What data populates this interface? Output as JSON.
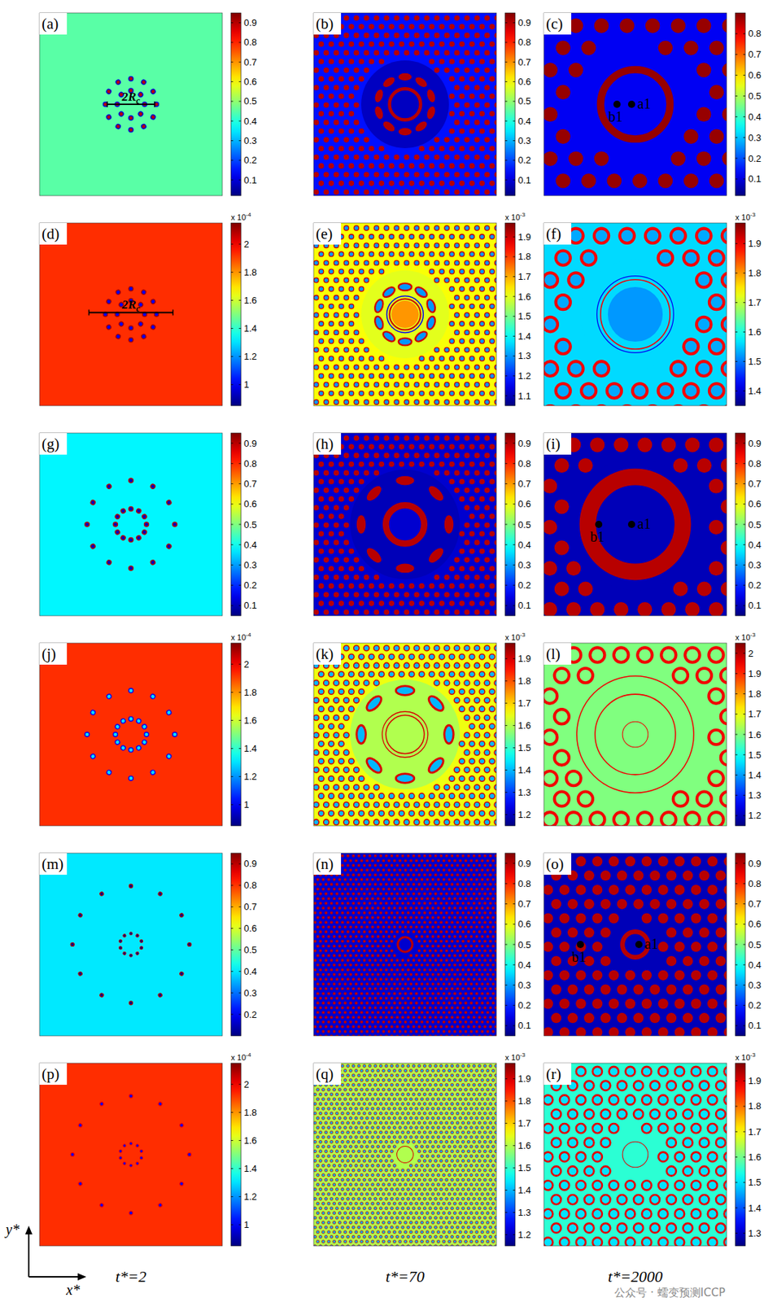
{
  "chart_data": [
    {
      "type": "heatmap",
      "label": "(a)",
      "colorbar": {
        "range": [
          0.02,
          0.95
        ],
        "ticks": [
          0.1,
          0.2,
          0.3,
          0.4,
          0.5,
          0.6,
          0.7,
          0.8,
          0.9
        ]
      },
      "field": {
        "background": 0.45,
        "disks": [],
        "rings": [],
        "particle_rings": [
          {
            "r": 0.075,
            "n": 8,
            "size": 0.012,
            "aspect": 1,
            "value": 0.9,
            "outline": 0.1
          },
          {
            "r": 0.14,
            "n": 12,
            "size": 0.012,
            "aspect": 1,
            "value": 0.9,
            "outline": 0.1
          }
        ],
        "points": [],
        "scale_line": {
          "label": "2R",
          "sub": "c",
          "x0": 0.37,
          "x1": 0.63,
          "y": 0.5
        }
      }
    },
    {
      "type": "heatmap",
      "label": "(b)",
      "colorbar": {
        "range": [
          0.02,
          0.95
        ],
        "ticks": [
          0.1,
          0.2,
          0.3,
          0.4,
          0.5,
          0.6,
          0.7,
          0.8,
          0.9
        ]
      },
      "field": {
        "background": 0.15,
        "disks": [
          {
            "r": 0.24,
            "value": 0.08
          }
        ],
        "lattice": {
          "spacing": 0.055,
          "size": 0.015,
          "value": 0.9,
          "exclude": 0.24
        },
        "rings": [
          {
            "r": 0.085,
            "width": 0.018,
            "value": 0.9
          }
        ],
        "particle_rings": [
          {
            "r": 0.15,
            "n": 10,
            "size": 0.02,
            "aspect": 1.8,
            "value": 0.9
          }
        ],
        "points": []
      }
    },
    {
      "type": "heatmap",
      "label": "(c)",
      "colorbar": {
        "range": [
          0.02,
          0.9
        ],
        "ticks": [
          0.1,
          0.2,
          0.3,
          0.4,
          0.5,
          0.6,
          0.7,
          0.8
        ]
      },
      "field": {
        "background": 0.12,
        "disks": [
          {
            "r": 0.3,
            "value": 0.12
          }
        ],
        "lattice": {
          "spacing": 0.14,
          "size": 0.04,
          "value": 0.88,
          "exclude": 0.3
        },
        "rings": [
          {
            "r": 0.19,
            "width": 0.04,
            "value": 0.88
          }
        ],
        "particle_rings": [],
        "points": [
          {
            "label": "a1",
            "x": 0.48,
            "y": 0.5,
            "side": "right"
          },
          {
            "label": "b1",
            "x": 0.4,
            "y": 0.5,
            "side": "below"
          }
        ]
      }
    },
    {
      "type": "heatmap",
      "label": "(d)",
      "colorbar": {
        "range": [
          0.85,
          2.15
        ],
        "ticks": [
          1,
          1.2,
          1.4,
          1.6,
          1.8,
          2
        ],
        "multiplier": {
          "base": "x 10",
          "exponent": "-4"
        }
      },
      "field": {
        "background": 1.93,
        "disks": [],
        "rings": [],
        "particle_rings": [
          {
            "r": 0.075,
            "n": 8,
            "size": 0.012,
            "aspect": 1,
            "value": 1.0,
            "outline": 2.1
          },
          {
            "r": 0.14,
            "n": 12,
            "size": 0.012,
            "aspect": 1,
            "value": 1.0,
            "outline": 2.1
          }
        ],
        "points": [],
        "scale_line": {
          "label": "2R",
          "sub": "c",
          "x0": 0.27,
          "x1": 0.73,
          "y": 0.49
        }
      }
    },
    {
      "type": "heatmap",
      "label": "(e)",
      "colorbar": {
        "range": [
          1.05,
          1.97
        ],
        "ticks": [
          1.1,
          1.2,
          1.3,
          1.4,
          1.5,
          1.6,
          1.7,
          1.8,
          1.9
        ],
        "multiplier": {
          "base": "x 10",
          "exponent": "-3"
        }
      },
      "field": {
        "background": 1.62,
        "disks": [
          {
            "r": 0.24,
            "value": 1.6
          },
          {
            "r": 0.075,
            "value": 1.72
          }
        ],
        "lattice": {
          "spacing": 0.055,
          "size": 0.013,
          "value": 1.3,
          "outline": 1.9,
          "exclude": 0.24
        },
        "rings": [
          {
            "r": 0.085,
            "width": 0.008,
            "value": 1.9
          },
          {
            "r": 0.1,
            "width": 0.006,
            "value": 1.15
          }
        ],
        "particle_rings": [
          {
            "r": 0.15,
            "n": 10,
            "size": 0.02,
            "aspect": 1.8,
            "value": 1.3,
            "outline": 1.9
          }
        ],
        "points": []
      }
    },
    {
      "type": "heatmap",
      "label": "(f)",
      "colorbar": {
        "range": [
          1.35,
          1.97
        ],
        "ticks": [
          1.4,
          1.5,
          1.6,
          1.7,
          1.8,
          1.9
        ],
        "multiplier": {
          "base": "x 10",
          "exponent": "-3"
        }
      },
      "field": {
        "background": 1.56,
        "disks": [
          {
            "r": 0.3,
            "value": 1.56
          },
          {
            "r": 0.15,
            "value": 1.52
          }
        ],
        "lattice": {
          "spacing": 0.14,
          "size": 0.04,
          "value": 1.53,
          "outline": 1.9,
          "exclude": 0.3
        },
        "rings": [
          {
            "r": 0.19,
            "width": 0.006,
            "value": 1.9
          },
          {
            "r": 0.21,
            "width": 0.005,
            "value": 1.42
          }
        ],
        "particle_rings": [],
        "points": []
      }
    },
    {
      "type": "heatmap",
      "label": "(g)",
      "colorbar": {
        "range": [
          0.05,
          0.95
        ],
        "ticks": [
          0.1,
          0.2,
          0.3,
          0.4,
          0.5,
          0.6,
          0.7,
          0.8,
          0.9
        ]
      },
      "field": {
        "background": 0.38,
        "disks": [],
        "rings": [],
        "particle_rings": [
          {
            "r": 0.085,
            "n": 12,
            "size": 0.012,
            "aspect": 1,
            "value": 0.1,
            "outline": 0.9
          },
          {
            "r": 0.24,
            "n": 12,
            "size": 0.012,
            "aspect": 1,
            "value": 0.1,
            "outline": 0.9
          }
        ],
        "points": []
      }
    },
    {
      "type": "heatmap",
      "label": "(h)",
      "colorbar": {
        "range": [
          0.05,
          0.95
        ],
        "ticks": [
          0.1,
          0.2,
          0.3,
          0.4,
          0.5,
          0.6,
          0.7,
          0.8,
          0.9
        ]
      },
      "field": {
        "background": 0.12,
        "disks": [
          {
            "r": 0.3,
            "value": 0.1
          },
          {
            "r": 0.09,
            "value": 0.12
          }
        ],
        "lattice": {
          "spacing": 0.055,
          "size": 0.015,
          "value": 0.9,
          "exclude": 0.3
        },
        "rings": [
          {
            "r": 0.105,
            "width": 0.035,
            "value": 0.9
          }
        ],
        "particle_rings": [
          {
            "r": 0.24,
            "n": 8,
            "size": 0.025,
            "aspect": 2,
            "value": 0.9
          }
        ],
        "points": []
      }
    },
    {
      "type": "heatmap",
      "label": "(i)",
      "colorbar": {
        "range": [
          0.05,
          0.95
        ],
        "ticks": [
          0.1,
          0.2,
          0.3,
          0.4,
          0.5,
          0.6,
          0.7,
          0.8,
          0.9
        ]
      },
      "field": {
        "background": 0.1,
        "disks": [
          {
            "r": 0.36,
            "value": 0.1
          }
        ],
        "lattice": {
          "spacing": 0.13,
          "size": 0.04,
          "value": 0.9,
          "exclude": 0.36
        },
        "rings": [
          {
            "r": 0.26,
            "width": 0.09,
            "value": 0.9
          }
        ],
        "particle_rings": [],
        "points": [
          {
            "label": "a1",
            "x": 0.48,
            "y": 0.5,
            "side": "right"
          },
          {
            "label": "b1",
            "x": 0.3,
            "y": 0.5,
            "side": "below"
          }
        ]
      }
    },
    {
      "type": "heatmap",
      "label": "(j)",
      "colorbar": {
        "range": [
          0.85,
          2.15
        ],
        "ticks": [
          1,
          1.2,
          1.4,
          1.6,
          1.8,
          2
        ],
        "multiplier": {
          "base": "x 10",
          "exponent": "-4"
        }
      },
      "field": {
        "background": 1.93,
        "disks": [],
        "rings": [],
        "particle_rings": [
          {
            "r": 0.085,
            "n": 12,
            "size": 0.012,
            "aspect": 1,
            "value": 1.3,
            "outline": 1.0
          },
          {
            "r": 0.24,
            "n": 12,
            "size": 0.012,
            "aspect": 1,
            "value": 1.3,
            "outline": 1.0
          }
        ],
        "points": []
      }
    },
    {
      "type": "heatmap",
      "label": "(k)",
      "colorbar": {
        "range": [
          1.15,
          1.97
        ],
        "ticks": [
          1.2,
          1.3,
          1.4,
          1.5,
          1.6,
          1.7,
          1.8,
          1.9
        ],
        "multiplier": {
          "base": "x 10",
          "exponent": "-3"
        }
      },
      "field": {
        "background": 1.65,
        "disks": [
          {
            "r": 0.3,
            "value": 1.6
          }
        ],
        "lattice": {
          "spacing": 0.055,
          "size": 0.015,
          "value": 1.4,
          "outline": 1.9,
          "exclude": 0.3
        },
        "rings": [
          {
            "r": 0.105,
            "width": 0.006,
            "value": 1.9
          },
          {
            "r": 0.125,
            "width": 0.005,
            "value": 1.9
          }
        ],
        "particle_rings": [
          {
            "r": 0.24,
            "n": 8,
            "size": 0.025,
            "aspect": 2,
            "value": 1.4,
            "outline": 1.9
          }
        ],
        "points": []
      }
    },
    {
      "type": "heatmap",
      "label": "(l)",
      "colorbar": {
        "range": [
          1.15,
          2.05
        ],
        "ticks": [
          1.2,
          1.3,
          1.4,
          1.5,
          1.6,
          1.7,
          1.8,
          1.9,
          2
        ],
        "multiplier": {
          "base": "x 10",
          "exponent": "-3"
        }
      },
      "field": {
        "background": 1.6,
        "disks": [],
        "lattice": {
          "spacing": 0.13,
          "size": 0.04,
          "value": 1.6,
          "outline": 1.95,
          "exclude": 0.36
        },
        "rings": [
          {
            "r": 0.22,
            "width": 0.006,
            "value": 1.95
          },
          {
            "r": 0.32,
            "width": 0.006,
            "value": 1.95
          },
          {
            "r": 0.07,
            "width": 0.004,
            "value": 1.95
          }
        ],
        "particle_rings": [],
        "points": []
      }
    },
    {
      "type": "heatmap",
      "label": "(m)",
      "colorbar": {
        "range": [
          0.1,
          0.95
        ],
        "ticks": [
          0.2,
          0.3,
          0.4,
          0.5,
          0.6,
          0.7,
          0.8,
          0.9
        ]
      },
      "field": {
        "background": 0.4,
        "disks": [],
        "rings": [],
        "particle_rings": [
          {
            "r": 0.06,
            "n": 10,
            "size": 0.008,
            "aspect": 1,
            "value": 0.1,
            "outline": 0.9
          },
          {
            "r": 0.32,
            "n": 12,
            "size": 0.01,
            "aspect": 1,
            "value": 0.1,
            "outline": 0.9
          }
        ],
        "points": []
      }
    },
    {
      "type": "heatmap",
      "label": "(n)",
      "colorbar": {
        "range": [
          0.05,
          0.95
        ],
        "ticks": [
          0.1,
          0.2,
          0.3,
          0.4,
          0.5,
          0.6,
          0.7,
          0.8,
          0.9
        ]
      },
      "field": {
        "background": 0.12,
        "disks": [
          {
            "r": 0.06,
            "value": 0.12
          }
        ],
        "lattice": {
          "spacing": 0.03,
          "size": 0.008,
          "value": 0.9,
          "exclude": 0.06
        },
        "rings": [
          {
            "r": 0.04,
            "width": 0.012,
            "value": 0.9
          }
        ],
        "particle_rings": [],
        "points": []
      }
    },
    {
      "type": "heatmap",
      "label": "(o)",
      "colorbar": {
        "range": [
          0.05,
          0.95
        ],
        "ticks": [
          0.1,
          0.2,
          0.3,
          0.4,
          0.5,
          0.6,
          0.7,
          0.8,
          0.9
        ]
      },
      "field": {
        "background": 0.1,
        "disks": [
          {
            "r": 0.12,
            "value": 0.1
          }
        ],
        "lattice": {
          "spacing": 0.09,
          "size": 0.028,
          "value": 0.9,
          "exclude": 0.12
        },
        "rings": [
          {
            "r": 0.07,
            "width": 0.025,
            "value": 0.9
          }
        ],
        "particle_rings": [],
        "points": [
          {
            "label": "a1",
            "x": 0.52,
            "y": 0.5,
            "side": "right"
          },
          {
            "label": "b1",
            "x": 0.2,
            "y": 0.5,
            "side": "below"
          }
        ]
      }
    },
    {
      "type": "heatmap",
      "label": "(p)",
      "colorbar": {
        "range": [
          0.85,
          2.15
        ],
        "ticks": [
          1,
          1.2,
          1.4,
          1.6,
          1.8,
          2
        ],
        "multiplier": {
          "base": "x 10",
          "exponent": "-4"
        }
      },
      "field": {
        "background": 1.93,
        "disks": [],
        "rings": [],
        "particle_rings": [
          {
            "r": 0.06,
            "n": 10,
            "size": 0.008,
            "aspect": 1,
            "value": 1.0,
            "outline": 2.0
          },
          {
            "r": 0.32,
            "n": 12,
            "size": 0.01,
            "aspect": 1,
            "value": 1.0,
            "outline": 2.0
          }
        ],
        "points": []
      }
    },
    {
      "type": "heatmap",
      "label": "(q)",
      "colorbar": {
        "range": [
          1.15,
          1.97
        ],
        "ticks": [
          1.2,
          1.3,
          1.4,
          1.5,
          1.6,
          1.7,
          1.8,
          1.9
        ],
        "multiplier": {
          "base": "x 10",
          "exponent": "-3"
        }
      },
      "field": {
        "background": 1.6,
        "disks": [],
        "lattice": {
          "spacing": 0.03,
          "size": 0.008,
          "value": 1.4,
          "outline": 1.9,
          "exclude": 0.06
        },
        "rings": [
          {
            "r": 0.045,
            "width": 0.004,
            "value": 1.9
          }
        ],
        "particle_rings": [],
        "points": []
      }
    },
    {
      "type": "heatmap",
      "label": "(r)",
      "colorbar": {
        "range": [
          1.25,
          1.97
        ],
        "ticks": [
          1.3,
          1.4,
          1.5,
          1.6,
          1.7,
          1.8,
          1.9
        ],
        "multiplier": {
          "base": "x 10",
          "exponent": "-3"
        }
      },
      "field": {
        "background": 1.55,
        "disks": [],
        "lattice": {
          "spacing": 0.09,
          "size": 0.026,
          "value": 1.5,
          "outline": 1.9,
          "exclude": 0.12
        },
        "rings": [
          {
            "r": 0.07,
            "width": 0.004,
            "value": 1.9
          }
        ],
        "particle_rings": [],
        "points": []
      }
    }
  ],
  "figure": {
    "x_label": "x*",
    "y_label": "y*",
    "column_labels": [
      "t*=2",
      "t*=70",
      "t*=2000"
    ],
    "watermark": "公众号 · 蠕变预测ICCP"
  }
}
